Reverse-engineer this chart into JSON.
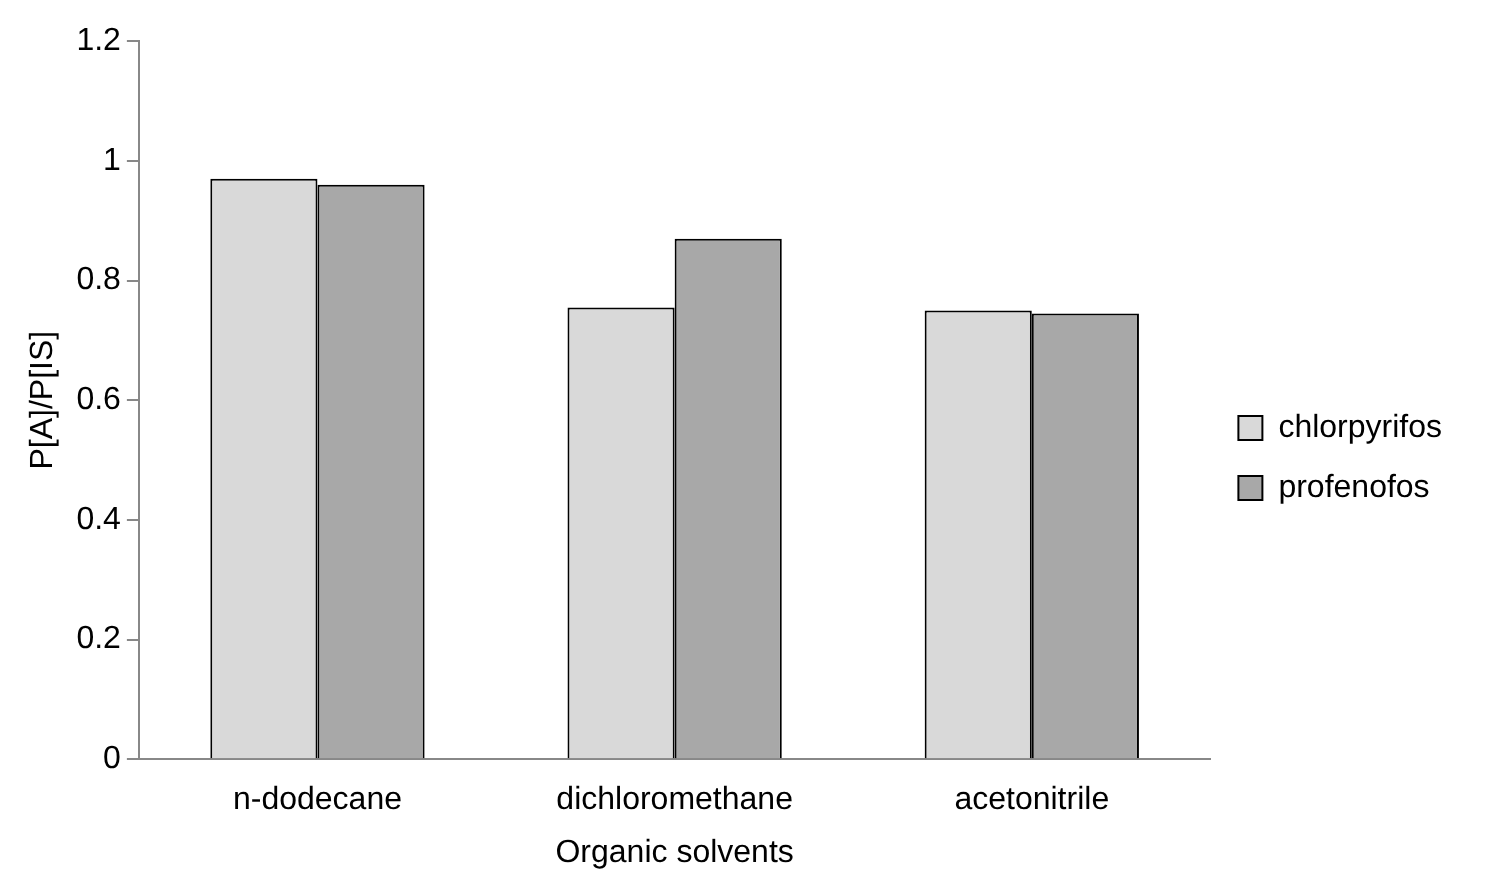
{
  "chart_data": {
    "type": "bar",
    "xlabel": "Organic solvents",
    "ylabel": "P[A]/P[IS]",
    "categories": [
      "n-dodecane",
      "dichloromethane",
      "acetonitrile"
    ],
    "series": [
      {
        "name": "chlorpyrifos",
        "color": "#d9d9d9",
        "values": [
          0.97,
          0.755,
          0.75
        ]
      },
      {
        "name": "profenofos",
        "color": "#a8a8a8",
        "values": [
          0.96,
          0.87,
          0.745
        ]
      }
    ],
    "ylim": [
      0,
      1.2
    ],
    "yticks": [
      0,
      0.2,
      0.4,
      0.6,
      0.8,
      1,
      1.2
    ],
    "grid": false,
    "legend": "right"
  }
}
